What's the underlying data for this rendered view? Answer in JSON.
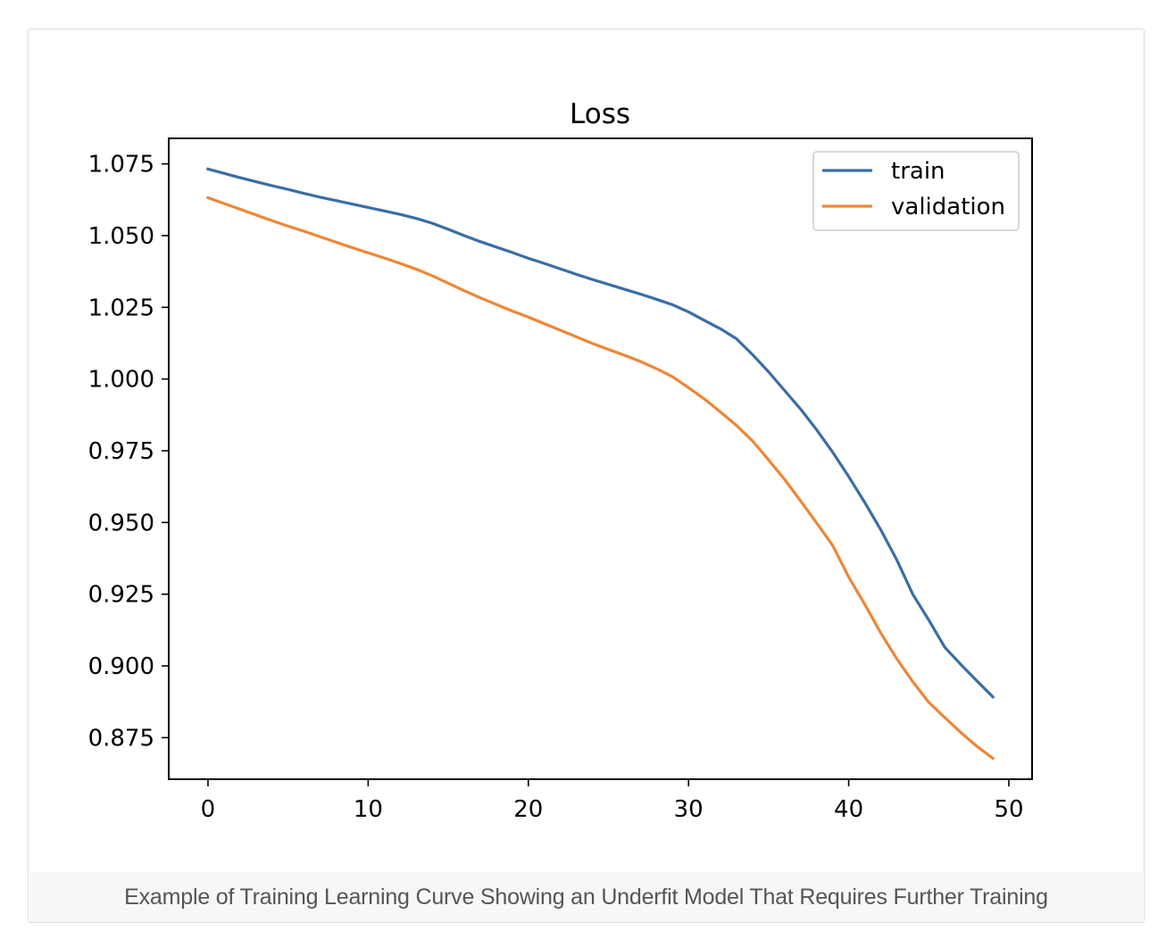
{
  "caption": "Example of Training Learning Curve Showing an Underfit Model That Requires Further Training",
  "chart_data": {
    "type": "line",
    "title": "Loss",
    "xlabel": "",
    "ylabel": "",
    "xlim": [
      -2.45,
      51.45
    ],
    "ylim": [
      0.8605,
      1.0839
    ],
    "xticks": [
      0,
      10,
      20,
      30,
      40,
      50
    ],
    "xtick_labels": [
      "0",
      "10",
      "20",
      "30",
      "40",
      "50"
    ],
    "yticks": [
      0.875,
      0.9,
      0.925,
      0.95,
      0.975,
      1.0,
      1.025,
      1.05,
      1.075
    ],
    "ytick_labels": [
      "0.875",
      "0.900",
      "0.925",
      "0.950",
      "0.975",
      "1.000",
      "1.025",
      "1.050",
      "1.075"
    ],
    "grid": false,
    "legend_position": "top-right",
    "x": [
      0,
      1,
      2,
      3,
      4,
      5,
      6,
      7,
      8,
      9,
      10,
      11,
      12,
      13,
      14,
      15,
      16,
      17,
      18,
      19,
      20,
      21,
      22,
      23,
      24,
      25,
      26,
      27,
      28,
      29,
      30,
      31,
      32,
      33,
      34,
      35,
      36,
      37,
      38,
      39,
      40,
      41,
      42,
      43,
      44,
      45,
      46,
      47,
      48,
      49
    ],
    "series": [
      {
        "name": "train",
        "color": "#3a6ea5",
        "values": [
          1.0732,
          1.0717,
          1.0702,
          1.0688,
          1.0674,
          1.0661,
          1.0647,
          1.0634,
          1.0622,
          1.061,
          1.0598,
          1.0586,
          1.0574,
          1.056,
          1.0543,
          1.0522,
          1.05,
          1.0479,
          1.046,
          1.0441,
          1.0421,
          1.0403,
          1.0384,
          1.0365,
          1.0347,
          1.033,
          1.0313,
          1.0296,
          1.0278,
          1.0259,
          1.0234,
          1.0204,
          1.0175,
          1.014,
          1.0085,
          1.0025,
          0.996,
          0.9895,
          0.9823,
          0.9745,
          0.966,
          0.957,
          0.9475,
          0.937,
          0.925,
          0.916,
          0.9065,
          0.9005,
          0.8948,
          0.8892
        ]
      },
      {
        "name": "validation",
        "color": "#ef8636",
        "values": [
          1.0632,
          1.0612,
          1.0592,
          1.0572,
          1.0552,
          1.0533,
          1.0515,
          1.0496,
          1.0477,
          1.0458,
          1.044,
          1.0422,
          1.0403,
          1.0383,
          1.036,
          1.0334,
          1.0308,
          1.0283,
          1.026,
          1.0237,
          1.0216,
          1.0193,
          1.017,
          1.0147,
          1.0124,
          1.0103,
          1.0083,
          1.0061,
          1.0036,
          1.0008,
          0.997,
          0.993,
          0.9885,
          0.9838,
          0.9784,
          0.9718,
          0.965,
          0.9575,
          0.9498,
          0.942,
          0.931,
          0.9215,
          0.9115,
          0.9025,
          0.8945,
          0.8873,
          0.882,
          0.8768,
          0.872,
          0.8678
        ]
      }
    ]
  }
}
